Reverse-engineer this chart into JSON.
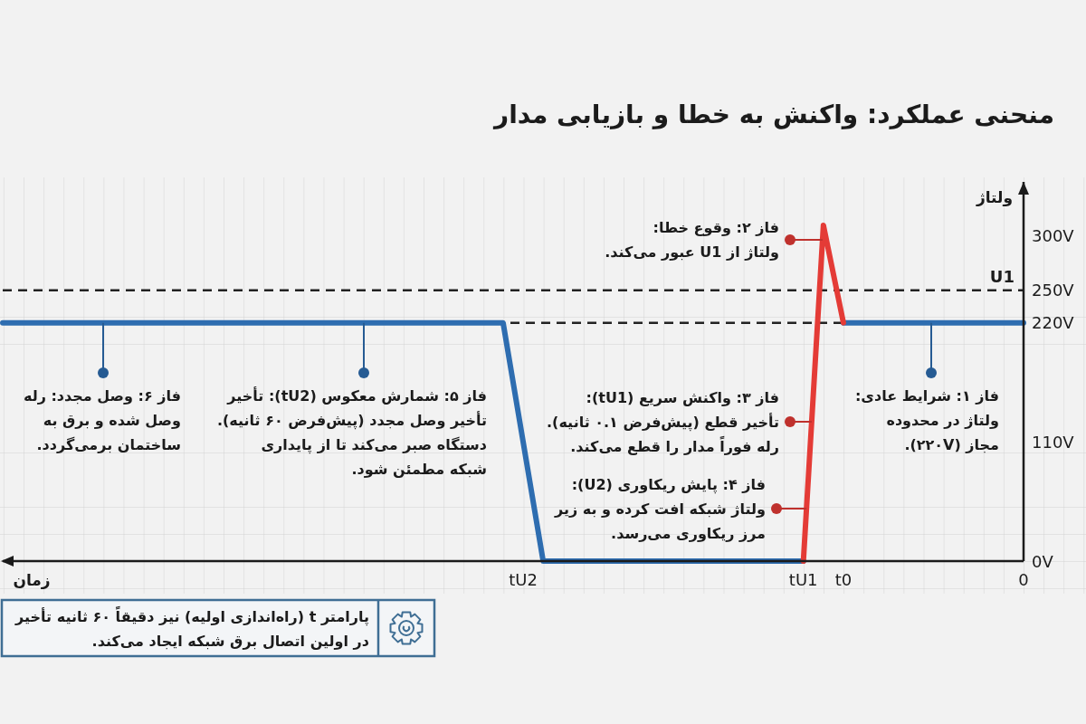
{
  "chart_data": {
    "type": "line",
    "title": "منحنی عملکرد: واکنش به خطا و بازیابی مدار",
    "xlabel": "زمان",
    "ylabel": "ولتاژ",
    "categories": [
      null,
      null,
      null,
      null,
      null,
      null,
      null,
      null,
      null,
      null,
      null,
      null,
      null,
      null,
      null,
      null,
      null,
      null,
      null,
      null,
      null,
      null,
      null,
      null,
      null,
      null,
      "tU2",
      null,
      null,
      null,
      null,
      null,
      null,
      null,
      null,
      null,
      null,
      null,
      null,
      null,
      "tU1",
      null,
      "t0",
      null,
      null,
      null,
      null,
      null,
      null,
      null,
      null,
      "0"
    ],
    "ylim": [
      0,
      350
    ],
    "yticks": [
      {
        "value": 0,
        "label": "0V"
      },
      {
        "value": 110,
        "label": "110V"
      },
      {
        "value": 220,
        "label": "220V"
      },
      {
        "value": 250,
        "label": "250V"
      },
      {
        "value": 300,
        "label": "300V"
      }
    ],
    "series": [
      {
        "color": "#2e6db0",
        "values": [
          220,
          220,
          220,
          220,
          220,
          220,
          220,
          220,
          220,
          220,
          220,
          220,
          220,
          220,
          220,
          220,
          220,
          220,
          220,
          220,
          220,
          220,
          220,
          220,
          220,
          220,
          110,
          0,
          0,
          0,
          0,
          0,
          0,
          0,
          0,
          0,
          0,
          0,
          0,
          0,
          0,
          null,
          220,
          220,
          220,
          220,
          220,
          220,
          220,
          220,
          220,
          220
        ]
      },
      {
        "color": "#e43b36",
        "values": [
          null,
          null,
          null,
          null,
          null,
          null,
          null,
          null,
          null,
          null,
          null,
          null,
          null,
          null,
          null,
          null,
          null,
          null,
          null,
          null,
          null,
          null,
          null,
          null,
          null,
          null,
          null,
          null,
          null,
          null,
          null,
          null,
          null,
          null,
          null,
          null,
          null,
          null,
          null,
          null,
          0,
          310,
          220,
          null,
          null,
          null,
          null,
          null,
          null,
          null,
          null,
          null
        ]
      }
    ],
    "ref_lines": [
      {
        "axis": "y",
        "value": 250,
        "label": "U1",
        "color": "#222222",
        "line_style": "dashed"
      },
      {
        "axis": "y",
        "value": 220,
        "color": "#222222",
        "line_style": "dashed"
      }
    ],
    "annotations": [
      "فاز ۱: شرایط عادی:\nولتاژ در محدوده\nمجاز (۲۲۰V).",
      "فاز ۲: وقوع خطا:\nولتاژ از U1 عبور می‌کند.",
      "فاز ۳: واکنش سریع (tU1):\nتأخیر قطع (پیش‌فرض ۰.۱ ثانیه).\nرله فوراً مدار را قطع می‌کند.",
      "فاز ۴: پایش ریکاوری (U2):\nولتاژ شبکه افت کرده و به زیر\nمرز ریکاوری می‌رسد.",
      "فاز ۵: شمارش معکوس (tU2): تأخیر\nتأخیر وصل مجدد (پیش‌فرض ۶۰ ثانیه).\nدستگاه صبر می‌کند تا از پایداری\nشبکه مطمئن شود.",
      "فاز ۶: وصل مجدد: رله\nوصل شده و برق به\nساختمان برمی‌گردد.",
      "پارامتر t (راه‌اندازی اولیه) نیز دقیقاً ۶۰ ثانیه تأخیر\nدر اولین اتصال برق شبکه ایجاد می‌کند."
    ]
  }
}
